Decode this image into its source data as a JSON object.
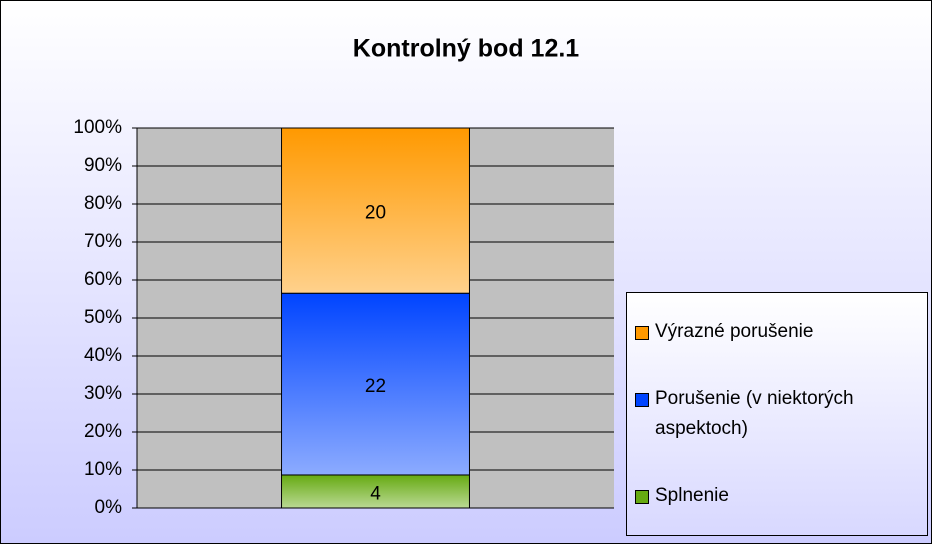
{
  "chart_data": {
    "type": "bar",
    "stacked": "percent",
    "title": "Kontrolný bod 12.1",
    "categories": [
      null
    ],
    "series": [
      {
        "name": "Splnenie",
        "color": "#66aa11",
        "values": [
          4
        ]
      },
      {
        "name": "Porušenie (v niektorých aspektoch)",
        "color": "#0044ff",
        "values": [
          22
        ]
      },
      {
        "name": "Výrazné porušenie",
        "color": "#ff9900",
        "values": [
          20
        ]
      }
    ],
    "ylim": [
      0,
      100
    ],
    "yticks": [
      {
        "value": 0,
        "label": "0%"
      },
      {
        "value": 10,
        "label": "10%"
      },
      {
        "value": 20,
        "label": "20%"
      },
      {
        "value": 30,
        "label": "30%"
      },
      {
        "value": 40,
        "label": "40%"
      },
      {
        "value": 50,
        "label": "50%"
      },
      {
        "value": 60,
        "label": "60%"
      },
      {
        "value": 70,
        "label": "70%"
      },
      {
        "value": 80,
        "label": "80%"
      },
      {
        "value": 90,
        "label": "90%"
      },
      {
        "value": 100,
        "label": "100%"
      }
    ],
    "grid": true,
    "legend": "right"
  }
}
